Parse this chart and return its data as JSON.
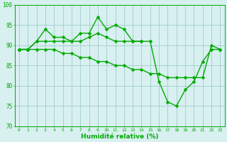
{
  "x": [
    0,
    1,
    2,
    3,
    4,
    5,
    6,
    7,
    8,
    9,
    10,
    11,
    12,
    13,
    14,
    15,
    16,
    17,
    18,
    19,
    20,
    21,
    22,
    23
  ],
  "series1": [
    89,
    89,
    91,
    91,
    91,
    91,
    91,
    93,
    93,
    97,
    94,
    95,
    94,
    91,
    91,
    91,
    81,
    76,
    75,
    79,
    81,
    86,
    89,
    89
  ],
  "series2_x": [
    0,
    1,
    2,
    3,
    4,
    5,
    6,
    7,
    8,
    9,
    10,
    11,
    12,
    13,
    14
  ],
  "series2_y": [
    89,
    89,
    91,
    94,
    92,
    92,
    91,
    91,
    92,
    93,
    92,
    91,
    91,
    91,
    91
  ],
  "series3": [
    89,
    89,
    89,
    89,
    89,
    88,
    88,
    87,
    87,
    86,
    86,
    85,
    85,
    84,
    84,
    83,
    83,
    82,
    82,
    82,
    82,
    82,
    90,
    89
  ],
  "line_color": "#00aa00",
  "bg_color": "#d8f0f0",
  "grid_color": "#a0cccc",
  "xlabel": "Humidité relative (%)",
  "ylim": [
    70,
    100
  ],
  "xlim": [
    -0.5,
    23.5
  ],
  "yticks": [
    70,
    75,
    80,
    85,
    90,
    95,
    100
  ],
  "xticks": [
    0,
    1,
    2,
    3,
    4,
    5,
    6,
    7,
    8,
    9,
    10,
    11,
    12,
    13,
    14,
    15,
    16,
    17,
    18,
    19,
    20,
    21,
    22,
    23
  ],
  "markersize": 2.5,
  "linewidth": 1.0
}
